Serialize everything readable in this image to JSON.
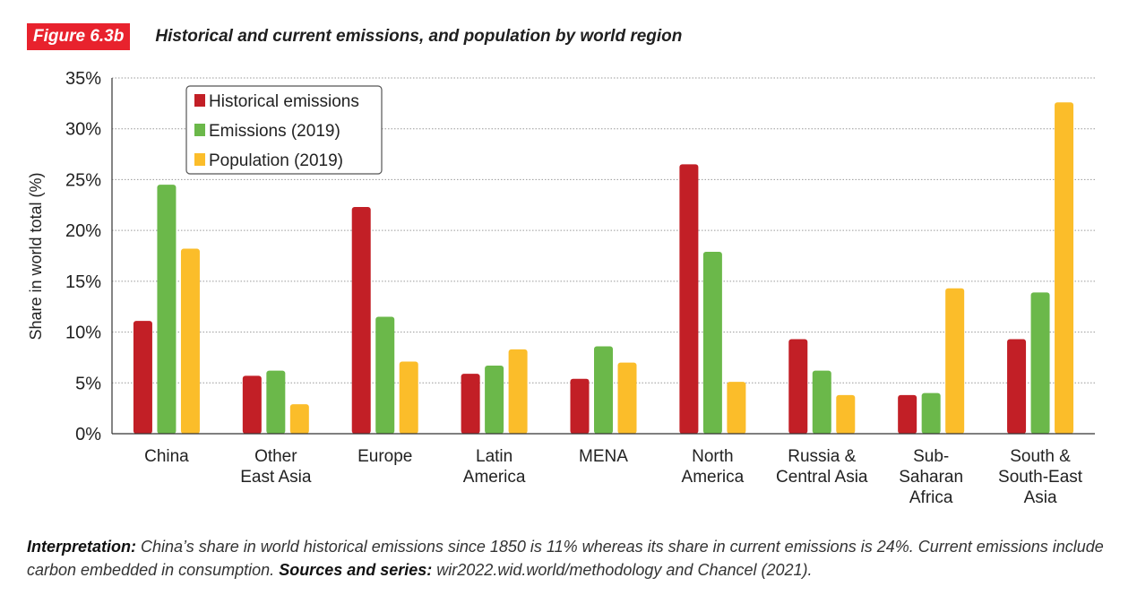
{
  "header": {
    "figure_label": "Figure 6.3b",
    "title": "Historical and current emissions, and population by world region"
  },
  "colors": {
    "accent": "#e8222d",
    "historical": "#c21f26",
    "emissions": "#6bb84a",
    "population": "#fbbd2a"
  },
  "chart_data": {
    "type": "bar",
    "title": "Historical and current emissions, and population by world region",
    "ylabel": "Share in world total (%)",
    "xlabel": "",
    "ylim": [
      0,
      35
    ],
    "yticks": [
      0,
      5,
      10,
      15,
      20,
      25,
      30,
      35
    ],
    "ytick_labels": [
      "0%",
      "5%",
      "10%",
      "15%",
      "20%",
      "25%",
      "30%",
      "35%"
    ],
    "grid": true,
    "legend_position": "top-left",
    "categories": [
      [
        "China"
      ],
      [
        "Other",
        "East Asia"
      ],
      [
        "Europe"
      ],
      [
        "Latin",
        "America"
      ],
      [
        "MENA"
      ],
      [
        "North",
        "America"
      ],
      [
        "Russia &",
        "Central Asia"
      ],
      [
        "Sub-",
        "Saharan",
        "Africa"
      ],
      [
        "South &",
        "South-East",
        "Asia"
      ]
    ],
    "series": [
      {
        "name": "Historical emissions",
        "color": "#c21f26",
        "values": [
          11.1,
          5.7,
          22.3,
          5.9,
          5.4,
          26.5,
          9.3,
          3.8,
          9.3
        ]
      },
      {
        "name": "Emissions (2019)",
        "color": "#6bb84a",
        "values": [
          24.5,
          6.2,
          11.5,
          6.7,
          8.6,
          17.9,
          6.2,
          4.0,
          13.9
        ]
      },
      {
        "name": "Population (2019)",
        "color": "#fbbd2a",
        "values": [
          18.2,
          2.9,
          7.1,
          8.3,
          7.0,
          5.1,
          3.8,
          14.3,
          32.6
        ]
      }
    ]
  },
  "footer": {
    "interp_label": "Interpretation:",
    "interp_text": " China’s share in world historical emissions since 1850 is 11% whereas its share in current emissions is 24%. Current emissions include carbon embedded in consumption. ",
    "sources_label": "Sources and series:",
    "sources_text": " wir2022.wid.world/methodology and Chancel (2021)."
  }
}
